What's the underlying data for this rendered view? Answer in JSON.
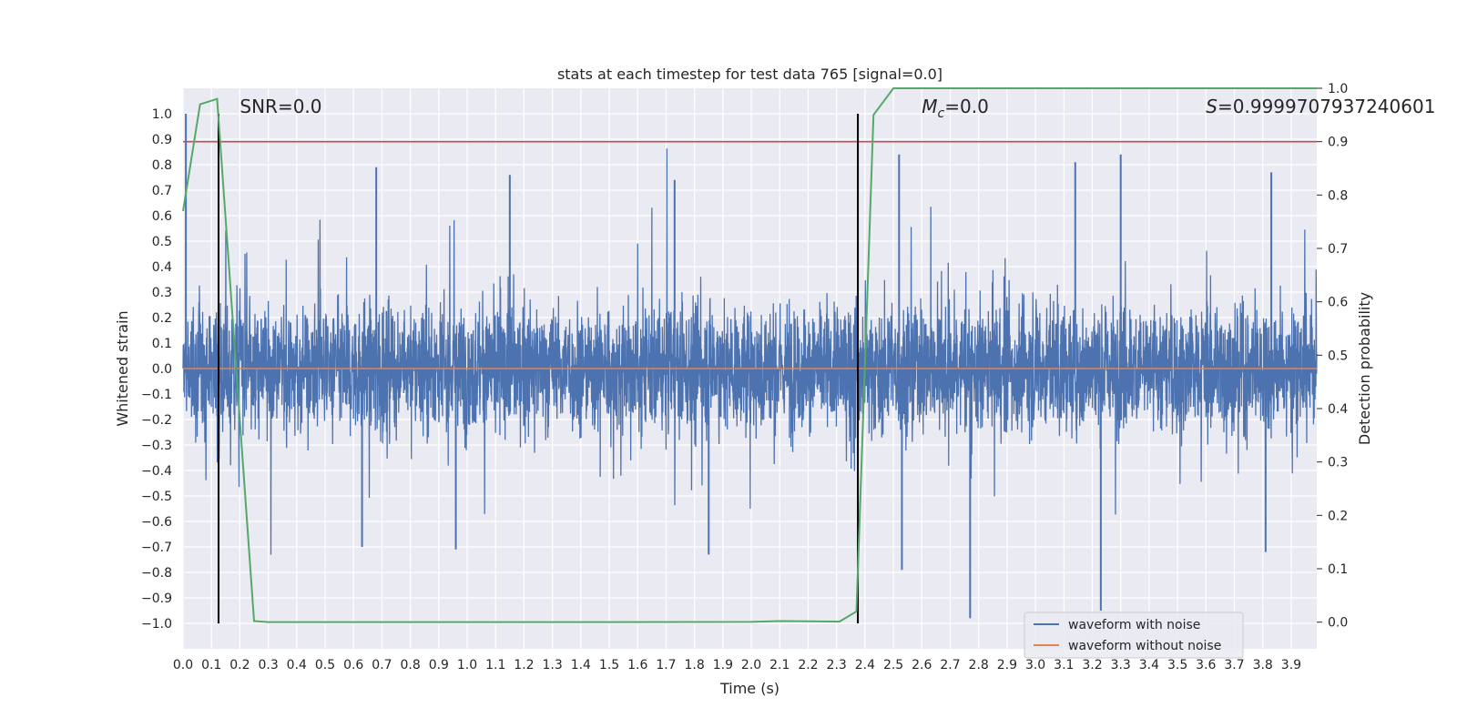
{
  "chart_data": {
    "type": "line",
    "title": "stats at each timestep for test data 765 [signal=0.0]",
    "xlabel": "Time (s)",
    "ylabel": "Whitened strain",
    "y2label": "Detection probability",
    "xlim": [
      0.0,
      3.99
    ],
    "ylim": [
      -1.1,
      1.1
    ],
    "y2lim": [
      -0.05,
      1.0
    ],
    "x_ticks": [
      0.0,
      0.1,
      0.2,
      0.3,
      0.4,
      0.5,
      0.6,
      0.7,
      0.8,
      0.9,
      1.0,
      1.1,
      1.2,
      1.3,
      1.4,
      1.5,
      1.6,
      1.7,
      1.8,
      1.9,
      2.0,
      2.1,
      2.2,
      2.3,
      2.4,
      2.5,
      2.6,
      2.7,
      2.8,
      2.9,
      3.0,
      3.1,
      3.2,
      3.3,
      3.4,
      3.5,
      3.6,
      3.7,
      3.8,
      3.9
    ],
    "y_ticks": [
      -1.0,
      -0.9,
      -0.8,
      -0.7,
      -0.6,
      -0.5,
      -0.4,
      -0.3,
      -0.2,
      -0.1,
      0.0,
      0.1,
      0.2,
      0.3,
      0.4,
      0.5,
      0.6,
      0.7,
      0.8,
      0.9,
      1.0
    ],
    "y2_ticks": [
      0.0,
      0.1,
      0.2,
      0.3,
      0.4,
      0.5,
      0.6,
      0.7,
      0.8,
      0.9,
      1.0
    ],
    "grid": true,
    "legend_position": "lower-right",
    "colors": {
      "waveform_with_noise": "#4c72b0",
      "waveform_without_noise": "#dd8452",
      "detection_probability": "#55a868",
      "threshold": "#c44e52",
      "markers": "#000000",
      "background": "#eaeaf2"
    },
    "series": [
      {
        "name": "waveform with noise",
        "axis": "left",
        "style": "dense noise, amplitude roughly ±0.5 with spikes up to ~1.0 and down to ~-0.98",
        "notable_spikes": [
          {
            "x": 0.01,
            "y": 1.0
          },
          {
            "x": 0.68,
            "y": 0.79
          },
          {
            "x": 1.15,
            "y": 0.76
          },
          {
            "x": 1.73,
            "y": 0.74
          },
          {
            "x": 2.52,
            "y": 0.84
          },
          {
            "x": 3.14,
            "y": 0.81
          },
          {
            "x": 3.3,
            "y": 0.84
          },
          {
            "x": 3.83,
            "y": 0.77
          },
          {
            "x": 2.77,
            "y": -0.98
          },
          {
            "x": 3.23,
            "y": -0.95
          },
          {
            "x": 1.85,
            "y": -0.73
          },
          {
            "x": 3.81,
            "y": -0.72
          },
          {
            "x": 0.63,
            "y": -0.7
          },
          {
            "x": 0.96,
            "y": -0.71
          },
          {
            "x": 2.53,
            "y": -0.79
          }
        ]
      },
      {
        "name": "waveform without noise",
        "axis": "left",
        "x": [
          0.0,
          3.99
        ],
        "y": [
          0.0,
          0.0
        ]
      },
      {
        "name": "",
        "axis": "right",
        "x": [
          0.0,
          0.06,
          0.12,
          0.25,
          0.3,
          0.6,
          1.0,
          1.5,
          2.0,
          2.1,
          2.31,
          2.37,
          2.43,
          2.5,
          3.0,
          3.5,
          3.99
        ],
        "y": [
          0.77,
          0.97,
          0.98,
          0.002,
          0.0,
          0.0,
          0.0,
          0.0,
          0.0005,
          0.002,
          0.001,
          0.02,
          0.95,
          1.0,
          1.0,
          1.0,
          1.0
        ]
      }
    ],
    "threshold_line": {
      "axis": "right",
      "y": 0.9
    },
    "vertical_markers": [
      0.125,
      2.375
    ],
    "annotations": [
      {
        "text": "SNR=0.0",
        "x": 0.2
      },
      {
        "text": "=0.0",
        "symbol_main": "M",
        "symbol_sub": "c",
        "x": 2.6
      },
      {
        "text": "=0.9999707937240601",
        "symbol_main": "S",
        "x": 3.6
      }
    ]
  }
}
